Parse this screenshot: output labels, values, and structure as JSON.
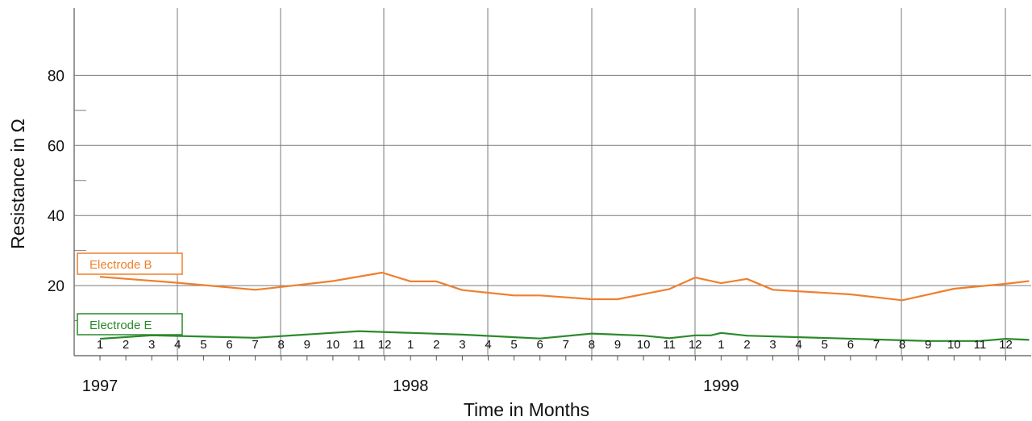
{
  "chart_data": {
    "type": "line",
    "xlabel": "Time in Months",
    "ylabel": "Resistance in Ω",
    "ylim": [
      0,
      100
    ],
    "yticks": [
      20,
      40,
      60,
      80
    ],
    "grid": true,
    "years": [
      "1997",
      "1998",
      "1999"
    ],
    "months": [
      "1",
      "2",
      "3",
      "4",
      "5",
      "6",
      "7",
      "8",
      "9",
      "10",
      "11",
      "12",
      "1",
      "2",
      "3",
      "4",
      "5",
      "6",
      "7",
      "8",
      "9",
      "10",
      "11",
      "12",
      "1",
      "2",
      "3",
      "4",
      "5",
      "6",
      "7",
      "8",
      "9",
      "10",
      "11",
      "12"
    ],
    "series": [
      {
        "name": "Electrode B",
        "color": "#f07f2d",
        "points": [
          [
            1,
            22.5
          ],
          [
            4,
            20.8
          ],
          [
            7,
            18.8
          ],
          [
            8,
            19.6
          ],
          [
            10,
            21.3
          ],
          [
            11.9,
            23.7
          ],
          [
            13,
            21.2
          ],
          [
            14,
            21.2
          ],
          [
            15,
            18.7
          ],
          [
            17,
            17.2
          ],
          [
            18,
            17.2
          ],
          [
            20,
            16.1
          ],
          [
            21,
            16.1
          ],
          [
            23,
            19
          ],
          [
            24,
            22.3
          ],
          [
            25,
            20.7
          ],
          [
            26,
            21.9
          ],
          [
            27,
            18.8
          ],
          [
            30,
            17.5
          ],
          [
            32,
            15.8
          ],
          [
            34,
            19.1
          ],
          [
            36,
            20.5
          ],
          [
            36.9,
            21.3
          ]
        ]
      },
      {
        "name": "Electrode E",
        "color": "#2a8a2a",
        "points": [
          [
            1,
            4.8
          ],
          [
            3,
            5.8
          ],
          [
            7,
            5.1
          ],
          [
            11,
            7
          ],
          [
            15,
            6
          ],
          [
            18,
            4.9
          ],
          [
            20,
            6.3
          ],
          [
            22,
            5.7
          ],
          [
            23,
            5
          ],
          [
            24,
            5.8
          ],
          [
            24.6,
            5.8
          ],
          [
            25,
            6.5
          ],
          [
            26,
            5.7
          ],
          [
            33,
            4.2
          ],
          [
            35,
            4.2
          ],
          [
            36,
            4.8
          ],
          [
            36.9,
            4.5
          ]
        ]
      }
    ]
  }
}
